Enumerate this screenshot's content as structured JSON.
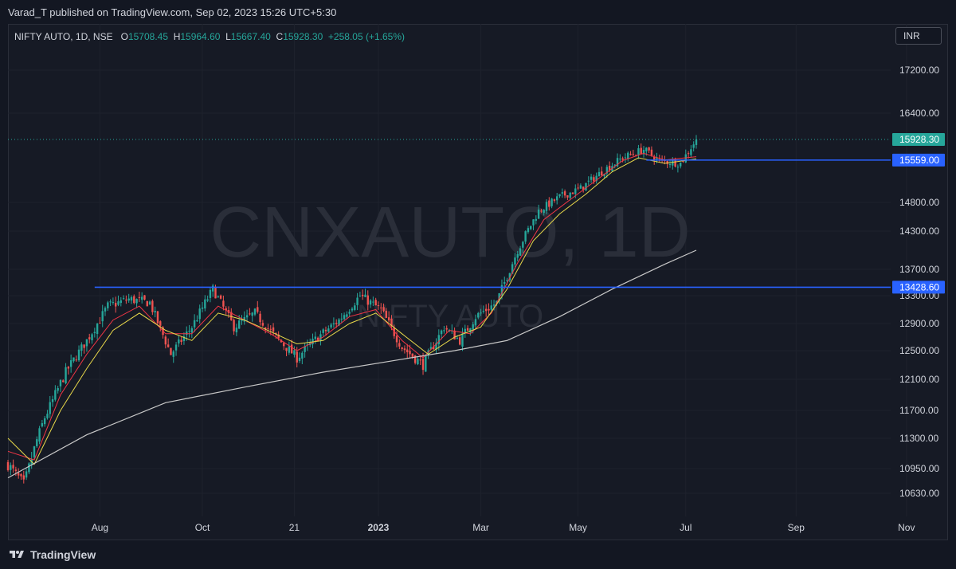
{
  "header": {
    "published": "Varad_T published on TradingView.com, Sep 02, 2023 15:26 UTC+5:30"
  },
  "legend": {
    "symbol": "NIFTY AUTO, 1D, NSE",
    "o_label": "O",
    "o": "15708.45",
    "h_label": "H",
    "h": "15964.60",
    "l_label": "L",
    "l": "15667.40",
    "c_label": "C",
    "c": "15928.30",
    "change": "+258.05 (+1.65%)"
  },
  "currency": "INR",
  "watermark": {
    "main": "CNXAUTO, 1D",
    "sub": "NIFTY AUTO"
  },
  "footer": {
    "brand": "TradingView"
  },
  "colors": {
    "up": "#26a69a",
    "down": "#ef5350",
    "ema_fast": "#f23645",
    "ema_mid": "#e8d84a",
    "sma_long": "#c8c8c8",
    "hline": "#2962ff",
    "last_price": "#26a69a"
  },
  "chart_data": {
    "type": "candlestick",
    "title": "NIFTY AUTO, 1D, NSE",
    "ylim": [
      10400,
      17800
    ],
    "y_ticks": [
      "17200.00",
      "16400.00",
      "15928.30",
      "15559.00",
      "14800.00",
      "14300.00",
      "13700.00",
      "13428.60",
      "13300.00",
      "12900.00",
      "12500.00",
      "12100.00",
      "11700.00",
      "11300.00",
      "10950.00",
      "10630.00"
    ],
    "y_tick_values": [
      17200,
      16400,
      14800,
      14300,
      13700,
      13300,
      12900,
      12500,
      12100,
      11700,
      11300,
      10950,
      10630
    ],
    "x_ticks": [
      "Aug",
      "Oct",
      "21",
      "2023",
      "Mar",
      "May",
      "Jul",
      "Sep",
      "Nov"
    ],
    "last_price": {
      "value": 15928.3,
      "label": "15928.30"
    },
    "horizontal_lines": [
      {
        "value": 15559.0,
        "label": "15559.00"
      },
      {
        "value": 13428.6,
        "label": "13428.60"
      }
    ],
    "series": [
      {
        "kind": "candles",
        "points": [
          [
            0,
            11000
          ],
          [
            6,
            10750
          ],
          [
            14,
            11600
          ],
          [
            22,
            12200
          ],
          [
            30,
            12650
          ],
          [
            38,
            13150
          ],
          [
            46,
            13250
          ],
          [
            54,
            13200
          ],
          [
            62,
            12450
          ],
          [
            70,
            12850
          ],
          [
            78,
            13400
          ],
          [
            86,
            12850
          ],
          [
            94,
            13050
          ],
          [
            102,
            12700
          ],
          [
            110,
            12400
          ],
          [
            118,
            12700
          ],
          [
            126,
            12950
          ],
          [
            134,
            13300
          ],
          [
            142,
            13100
          ],
          [
            150,
            12550
          ],
          [
            158,
            12300
          ],
          [
            166,
            12850
          ],
          [
            172,
            12650
          ],
          [
            178,
            13000
          ],
          [
            186,
            13200
          ],
          [
            194,
            14000
          ],
          [
            202,
            14650
          ],
          [
            210,
            14900
          ],
          [
            218,
            15050
          ],
          [
            226,
            15350
          ],
          [
            234,
            15600
          ],
          [
            242,
            15750
          ],
          [
            248,
            15550
          ],
          [
            256,
            15500
          ],
          [
            262,
            15928.3
          ]
        ]
      },
      {
        "kind": "ema-fast",
        "points": [
          [
            0,
            11150
          ],
          [
            10,
            11050
          ],
          [
            20,
            11900
          ],
          [
            30,
            12450
          ],
          [
            40,
            12950
          ],
          [
            50,
            13150
          ],
          [
            60,
            12750
          ],
          [
            70,
            12750
          ],
          [
            80,
            13150
          ],
          [
            90,
            12950
          ],
          [
            100,
            12750
          ],
          [
            110,
            12500
          ],
          [
            120,
            12700
          ],
          [
            130,
            13000
          ],
          [
            140,
            13100
          ],
          [
            150,
            12650
          ],
          [
            158,
            12400
          ],
          [
            168,
            12800
          ],
          [
            176,
            12750
          ],
          [
            184,
            13050
          ],
          [
            194,
            13800
          ],
          [
            204,
            14500
          ],
          [
            214,
            14850
          ],
          [
            224,
            15200
          ],
          [
            234,
            15550
          ],
          [
            242,
            15680
          ],
          [
            250,
            15560
          ],
          [
            262,
            15620
          ]
        ]
      },
      {
        "kind": "ema-mid",
        "points": [
          [
            0,
            11300
          ],
          [
            10,
            11000
          ],
          [
            20,
            11700
          ],
          [
            30,
            12250
          ],
          [
            40,
            12800
          ],
          [
            50,
            13050
          ],
          [
            60,
            12800
          ],
          [
            70,
            12650
          ],
          [
            80,
            13050
          ],
          [
            90,
            12950
          ],
          [
            100,
            12780
          ],
          [
            110,
            12600
          ],
          [
            120,
            12650
          ],
          [
            130,
            12900
          ],
          [
            140,
            13050
          ],
          [
            150,
            12750
          ],
          [
            160,
            12450
          ],
          [
            170,
            12700
          ],
          [
            180,
            12850
          ],
          [
            190,
            13400
          ],
          [
            200,
            14150
          ],
          [
            210,
            14600
          ],
          [
            220,
            14950
          ],
          [
            230,
            15350
          ],
          [
            240,
            15600
          ],
          [
            250,
            15500
          ],
          [
            262,
            15580
          ]
        ]
      },
      {
        "kind": "sma-long",
        "points": [
          [
            0,
            10830
          ],
          [
            30,
            11350
          ],
          [
            60,
            11800
          ],
          [
            90,
            12000
          ],
          [
            120,
            12200
          ],
          [
            150,
            12380
          ],
          [
            170,
            12500
          ],
          [
            190,
            12650
          ],
          [
            210,
            13000
          ],
          [
            230,
            13400
          ],
          [
            250,
            13780
          ],
          [
            262,
            14000
          ]
        ]
      }
    ]
  }
}
